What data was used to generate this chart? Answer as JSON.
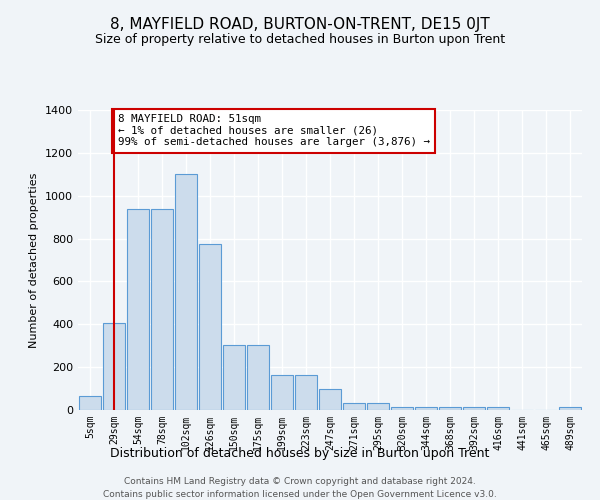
{
  "title": "8, MAYFIELD ROAD, BURTON-ON-TRENT, DE15 0JT",
  "subtitle": "Size of property relative to detached houses in Burton upon Trent",
  "xlabel": "Distribution of detached houses by size in Burton upon Trent",
  "ylabel": "Number of detached properties",
  "categories": [
    "5sqm",
    "29sqm",
    "54sqm",
    "78sqm",
    "102sqm",
    "126sqm",
    "150sqm",
    "175sqm",
    "199sqm",
    "223sqm",
    "247sqm",
    "271sqm",
    "295sqm",
    "320sqm",
    "344sqm",
    "368sqm",
    "392sqm",
    "416sqm",
    "441sqm",
    "465sqm",
    "489sqm"
  ],
  "values": [
    65,
    405,
    940,
    940,
    1100,
    775,
    305,
    305,
    165,
    165,
    100,
    35,
    35,
    15,
    15,
    15,
    15,
    15,
    0,
    0,
    15
  ],
  "bar_color": "#ccdcec",
  "bar_edge_color": "#5b9bd5",
  "annotation_text": "8 MAYFIELD ROAD: 51sqm\n← 1% of detached houses are smaller (26)\n99% of semi-detached houses are larger (3,876) →",
  "annotation_box_color": "#ffffff",
  "annotation_box_edge": "#cc0000",
  "vline_x_index": 1,
  "vline_color": "#cc0000",
  "ylim": [
    0,
    1400
  ],
  "yticks": [
    0,
    200,
    400,
    600,
    800,
    1000,
    1200,
    1400
  ],
  "footer_line1": "Contains HM Land Registry data © Crown copyright and database right 2024.",
  "footer_line2": "Contains public sector information licensed under the Open Government Licence v3.0.",
  "bg_color": "#f0f4f8",
  "grid_color": "#ffffff",
  "title_fontsize": 11,
  "subtitle_fontsize": 9
}
